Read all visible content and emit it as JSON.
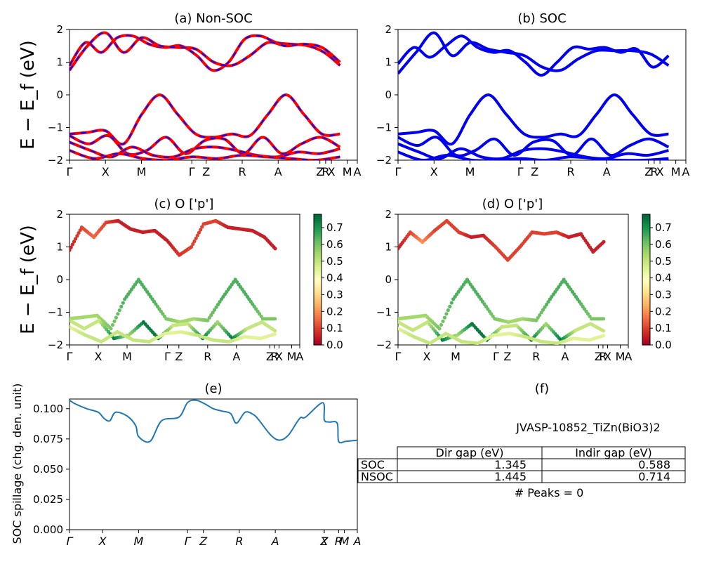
{
  "panels": {
    "a": {
      "title": "(a) Non-SOC",
      "ylabel": "E − E_f (eV)",
      "yticks": [
        "2",
        "1",
        "0",
        "−1",
        "−2"
      ],
      "xticks": [
        "Γ",
        "X",
        "M",
        "Γ",
        "Z",
        "R",
        "A",
        "Z",
        "R",
        "X",
        "M",
        "A"
      ],
      "bands_colors": {
        "line": "#ff0000",
        "dash": "#0000ff"
      }
    },
    "b": {
      "title": "(b) SOC",
      "yticks": [
        "2",
        "1",
        "0",
        "−1",
        "−2"
      ],
      "xticks": [
        "Γ",
        "X",
        "M",
        "Γ",
        "Z",
        "R",
        "A",
        "Z",
        "R",
        "X",
        "M",
        "A"
      ],
      "bands_color": "#0000ee"
    },
    "c": {
      "title": "(c)  O ['p']",
      "ylabel": "E − E_f (eV)",
      "yticks": [
        "2",
        "1",
        "0",
        "−1",
        "−2"
      ],
      "xticks": [
        "Γ",
        "X",
        "M",
        "Γ",
        "Z",
        "R",
        "A",
        "Z",
        "R",
        "X",
        "M",
        "A"
      ],
      "colorbar_ticks": [
        "0.7",
        "0.6",
        "0.5",
        "0.4",
        "0.3",
        "0.2",
        "0.1",
        "0.0"
      ],
      "colormap": "RdYlGn"
    },
    "d": {
      "title": "(d) O ['p']",
      "yticks": [
        "2",
        "1",
        "0",
        "−1",
        "−2"
      ],
      "xticks": [
        "Γ",
        "X",
        "M",
        "Γ",
        "Z",
        "R",
        "A",
        "Z",
        "R",
        "X",
        "M",
        "A"
      ],
      "colorbar_ticks": [
        "0.7",
        "0.6",
        "0.5",
        "0.4",
        "0.3",
        "0.2",
        "0.1",
        "0.0"
      ],
      "colormap": "RdYlGn"
    },
    "e": {
      "title": "(e)",
      "ylabel": "SOC spillage (chg. den. unit)",
      "yticks": [
        "0.100",
        "0.075",
        "0.050",
        "0.025",
        "0.000"
      ],
      "xticks": [
        "Γ",
        "X",
        "M",
        "Γ",
        "Z",
        "R",
        "A",
        "Z",
        "X",
        "R",
        "M",
        "A"
      ],
      "line_color": "#1f77b4"
    },
    "f": {
      "title": "(f)",
      "material": "JVASP-10852_TiZn(BiO3)2",
      "table": {
        "headers": [
          "Dir gap (eV)",
          "Indir gap (eV)"
        ],
        "rows": [
          {
            "label": "SOC",
            "dir": "1.345",
            "indir": "0.588"
          },
          {
            "label": "NSOC",
            "dir": "1.445",
            "indir": "0.714"
          }
        ]
      },
      "peaks": "# Peaks = 0"
    }
  },
  "chart_data": [
    {
      "type": "line",
      "title": "(a) Non-SOC",
      "ylabel": "E − E_f (eV)",
      "ylim": [
        -2,
        2
      ],
      "x_labels": [
        "Γ",
        "X",
        "M",
        "Γ",
        "Z",
        "R",
        "A",
        "Z",
        "R",
        "X",
        "M",
        "A"
      ],
      "series": [
        {
          "values": [
            0.9,
            1.6,
            1.3,
            1.75,
            1.8,
            1.55,
            1.45,
            1.5,
            1.2,
            0.75,
            1.0,
            1.7,
            1.8,
            1.6,
            1.55,
            1.5,
            1.3,
            0.9
          ]
        },
        {
          "values": [
            0.75,
            1.5,
            1.9,
            1.3,
            1.75,
            1.5,
            1.45,
            1.4,
            1.0,
            0.9,
            1.2,
            1.6,
            1.5,
            1.55,
            1.45,
            1.0
          ]
        },
        {
          "values": [
            -1.2,
            -1.15,
            -1.1,
            -1.5,
            -0.6,
            0.0,
            -0.6,
            -1.2,
            -1.3,
            -1.2,
            -1.25,
            -0.6,
            0.0,
            -0.6,
            -1.2,
            -1.2
          ]
        },
        {
          "values": [
            -1.25,
            -1.5,
            -1.25,
            -1.8,
            -1.7,
            -1.3,
            -1.8,
            -1.4,
            -1.35,
            -1.8,
            -1.3,
            -1.8,
            -1.5,
            -1.3,
            -1.6
          ]
        },
        {
          "values": [
            -1.45,
            -1.7,
            -1.9,
            -1.6,
            -1.85,
            -1.9,
            -1.65,
            -1.6,
            -1.7,
            -1.85,
            -1.9,
            -1.75,
            -1.8,
            -1.65
          ]
        },
        {
          "values": [
            -1.7,
            -1.95,
            -1.8,
            -1.95,
            -2.0,
            -1.9,
            -1.95,
            -1.85,
            -1.9,
            -1.95,
            -2.0,
            -1.9
          ]
        }
      ]
    },
    {
      "type": "line",
      "title": "(b) SOC",
      "ylim": [
        -2,
        2
      ],
      "x_labels": [
        "Γ",
        "X",
        "M",
        "Γ",
        "Z",
        "R",
        "A",
        "Z",
        "R",
        "X",
        "M",
        "A"
      ],
      "series": [
        {
          "values": [
            0.95,
            1.45,
            1.15,
            1.5,
            1.8,
            1.45,
            1.3,
            1.35,
            1.0,
            0.6,
            1.0,
            1.45,
            1.4,
            1.45,
            1.3,
            1.4,
            0.85,
            1.2
          ]
        },
        {
          "values": [
            0.65,
            1.3,
            1.9,
            1.2,
            1.6,
            1.4,
            1.3,
            1.2,
            0.85,
            0.75,
            1.1,
            1.35,
            1.35,
            1.35,
            1.25,
            0.9
          ]
        },
        {
          "values": [
            -1.2,
            -1.15,
            -1.1,
            -1.5,
            -0.6,
            0.0,
            -0.6,
            -1.2,
            -1.3,
            -1.2,
            -1.25,
            -0.6,
            0.0,
            -0.6,
            -1.2,
            -1.2
          ]
        },
        {
          "values": [
            -1.3,
            -1.55,
            -1.3,
            -1.85,
            -1.7,
            -1.35,
            -1.85,
            -1.45,
            -1.4,
            -1.85,
            -1.35,
            -1.85,
            -1.55,
            -1.35,
            -1.6
          ]
        },
        {
          "values": [
            -1.5,
            -1.75,
            -1.95,
            -1.65,
            -1.9,
            -1.95,
            -1.7,
            -1.65,
            -1.75,
            -1.9,
            -1.95,
            -1.8,
            -1.85,
            -1.7
          ]
        },
        {
          "values": [
            -1.75,
            -2.0,
            -1.85,
            -2.0,
            -2.0,
            -1.95,
            -2.0,
            -1.9,
            -1.95,
            -2.0,
            -2.0,
            -1.95
          ]
        }
      ]
    },
    {
      "type": "scatter",
      "title": "(c)  O ['p']",
      "ylim": [
        -2,
        2
      ],
      "colorbar_range": [
        0.0,
        0.78
      ],
      "x_labels": [
        "Γ",
        "X",
        "M",
        "Γ",
        "Z",
        "R",
        "A",
        "Z",
        "R",
        "X",
        "M",
        "A"
      ],
      "series": [
        {
          "values": [
            0.9,
            1.6,
            1.3,
            1.75,
            1.8,
            1.55,
            1.45,
            1.5,
            1.2,
            0.75,
            1.0,
            1.7,
            1.8,
            1.6,
            1.55,
            1.5,
            1.3,
            0.9
          ],
          "weights": [
            0.05,
            0.1,
            0.15,
            0.1,
            0.05,
            0.05,
            0.05,
            0.05,
            0.05,
            0.08,
            0.1,
            0.1,
            0.1,
            0.05,
            0.05,
            0.05,
            0.05,
            0.05
          ]
        },
        {
          "values": [
            -1.2,
            -1.15,
            -1.1,
            -1.5,
            -0.6,
            0.0,
            -0.6,
            -1.2,
            -1.3,
            -1.2,
            -1.25,
            -0.6,
            0.0,
            -0.6,
            -1.2,
            -1.2
          ],
          "weights": [
            0.55,
            0.55,
            0.55,
            0.6,
            0.65,
            0.65,
            0.65,
            0.6,
            0.55,
            0.55,
            0.6,
            0.65,
            0.65,
            0.65,
            0.6,
            0.6
          ]
        },
        {
          "values": [
            -1.25,
            -1.5,
            -1.25,
            -1.8,
            -1.7,
            -1.3,
            -1.8,
            -1.4,
            -1.35,
            -1.8,
            -1.3,
            -1.8,
            -1.5,
            -1.3,
            -1.6
          ],
          "weights": [
            0.5,
            0.5,
            0.5,
            0.75,
            0.55,
            0.75,
            0.75,
            0.5,
            0.5,
            0.75,
            0.55,
            0.75,
            0.5,
            0.5,
            0.5
          ]
        },
        {
          "values": [
            -1.45,
            -1.7,
            -1.9,
            -1.6,
            -1.85,
            -1.9,
            -1.65,
            -1.6,
            -1.7,
            -1.85,
            -1.9,
            -1.75,
            -1.8,
            -1.65
          ],
          "weights": [
            0.45,
            0.5,
            0.5,
            0.5,
            0.5,
            0.5,
            0.45,
            0.45,
            0.5,
            0.5,
            0.5,
            0.45,
            0.45,
            0.45
          ]
        }
      ]
    },
    {
      "type": "scatter",
      "title": "(d) O ['p']",
      "ylim": [
        -2,
        2
      ],
      "colorbar_range": [
        0.0,
        0.78
      ],
      "x_labels": [
        "Γ",
        "X",
        "M",
        "Γ",
        "Z",
        "R",
        "A",
        "Z",
        "R",
        "X",
        "M",
        "A"
      ],
      "series": [
        {
          "values": [
            0.95,
            1.45,
            1.15,
            1.5,
            1.8,
            1.45,
            1.3,
            1.35,
            1.0,
            0.6,
            1.0,
            1.45,
            1.4,
            1.45,
            1.3,
            1.4,
            0.85,
            1.2
          ],
          "weights": [
            0.05,
            0.1,
            0.2,
            0.1,
            0.1,
            0.1,
            0.05,
            0.05,
            0.1,
            0.1,
            0.1,
            0.1,
            0.1,
            0.1,
            0.05,
            0.05,
            0.05,
            0.05
          ]
        },
        {
          "values": [
            -1.2,
            -1.15,
            -1.1,
            -1.5,
            -0.6,
            0.0,
            -0.6,
            -1.2,
            -1.3,
            -1.2,
            -1.25,
            -0.6,
            0.0,
            -0.6,
            -1.2,
            -1.2
          ],
          "weights": [
            0.55,
            0.55,
            0.55,
            0.6,
            0.65,
            0.65,
            0.65,
            0.6,
            0.55,
            0.55,
            0.6,
            0.65,
            0.65,
            0.65,
            0.6,
            0.6
          ]
        },
        {
          "values": [
            -1.3,
            -1.55,
            -1.3,
            -1.85,
            -1.7,
            -1.35,
            -1.85,
            -1.45,
            -1.4,
            -1.85,
            -1.35,
            -1.85,
            -1.55,
            -1.35,
            -1.6
          ],
          "weights": [
            0.5,
            0.5,
            0.5,
            0.75,
            0.55,
            0.75,
            0.75,
            0.5,
            0.5,
            0.75,
            0.55,
            0.75,
            0.5,
            0.5,
            0.5
          ]
        },
        {
          "values": [
            -1.5,
            -1.75,
            -1.95,
            -1.65,
            -1.9,
            -1.95,
            -1.7,
            -1.65,
            -1.75,
            -1.9,
            -1.95,
            -1.8,
            -1.85,
            -1.7
          ],
          "weights": [
            0.45,
            0.5,
            0.5,
            0.5,
            0.5,
            0.5,
            0.45,
            0.45,
            0.5,
            0.5,
            0.5,
            0.45,
            0.45,
            0.45
          ]
        }
      ]
    },
    {
      "type": "line",
      "title": "(e)",
      "ylabel": "SOC spillage (chg. den. unit)",
      "ylim": [
        0,
        0.108
      ],
      "x_labels": [
        "Γ",
        "X",
        "M",
        "Γ",
        "Z",
        "R",
        "A",
        "Z",
        "X",
        "R",
        "M",
        "A"
      ],
      "x": [
        0,
        0.02,
        0.06,
        0.1,
        0.12,
        0.14,
        0.16,
        0.2,
        0.23,
        0.24,
        0.28,
        0.32,
        0.38,
        0.41,
        0.44,
        0.47,
        0.5,
        0.53,
        0.56,
        0.58,
        0.61,
        0.64,
        0.66,
        0.7,
        0.73,
        0.76,
        0.8,
        0.82,
        0.88,
        0.885,
        0.9,
        0.93,
        0.935,
        0.96,
        1.0
      ],
      "values": [
        0.107,
        0.104,
        0.1,
        0.097,
        0.092,
        0.09,
        0.097,
        0.094,
        0.086,
        0.077,
        0.073,
        0.09,
        0.093,
        0.105,
        0.107,
        0.104,
        0.1,
        0.098,
        0.096,
        0.088,
        0.097,
        0.095,
        0.09,
        0.078,
        0.074,
        0.078,
        0.092,
        0.093,
        0.105,
        0.091,
        0.089,
        0.088,
        0.073,
        0.073,
        0.074
      ]
    }
  ]
}
